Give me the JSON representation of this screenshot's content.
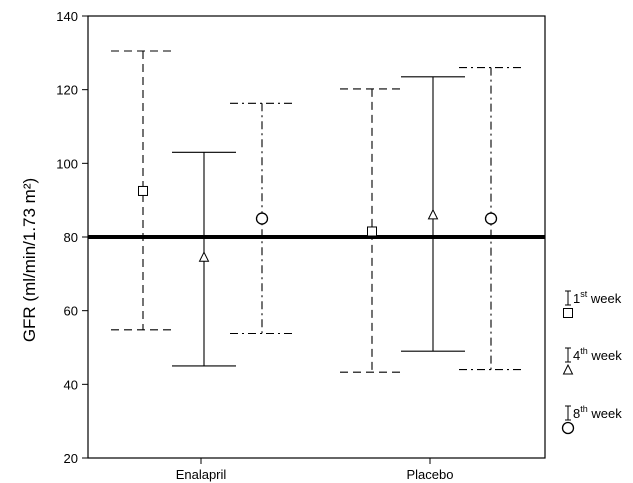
{
  "chart_data": {
    "type": "error_bar",
    "ylabel": "GFR (ml/min/1.73 m²)",
    "ylim": [
      20,
      140
    ],
    "yticks": [
      20,
      40,
      60,
      80,
      100,
      120,
      140
    ],
    "categories": [
      "Enalapril",
      "Placebo"
    ],
    "reference_line": 80,
    "series": [
      {
        "name": "1st week",
        "marker": "square",
        "line_style": "dashed",
        "values": [
          {
            "category": "Enalapril",
            "mean": 92.5,
            "lower": 54.8,
            "upper": 130.5
          },
          {
            "category": "Placebo",
            "mean": 81.5,
            "lower": 43.3,
            "upper": 120.2
          }
        ]
      },
      {
        "name": "4th week",
        "marker": "triangle",
        "line_style": "solid",
        "values": [
          {
            "category": "Enalapril",
            "mean": 74.5,
            "lower": 45.0,
            "upper": 103.0
          },
          {
            "category": "Placebo",
            "mean": 86.0,
            "lower": 49.0,
            "upper": 123.5
          }
        ]
      },
      {
        "name": "8th week",
        "marker": "circle",
        "line_style": "dash-dot",
        "values": [
          {
            "category": "Enalapril",
            "mean": 85.0,
            "lower": 53.8,
            "upper": 116.3
          },
          {
            "category": "Placebo",
            "mean": 85.0,
            "lower": 44.0,
            "upper": 126.0
          }
        ]
      }
    ],
    "legend": [
      {
        "ordinal": "1",
        "sup": "st",
        "word": "week"
      },
      {
        "ordinal": "4",
        "sup": "th",
        "word": "week"
      },
      {
        "ordinal": "8",
        "sup": "th",
        "word": "week"
      }
    ]
  }
}
